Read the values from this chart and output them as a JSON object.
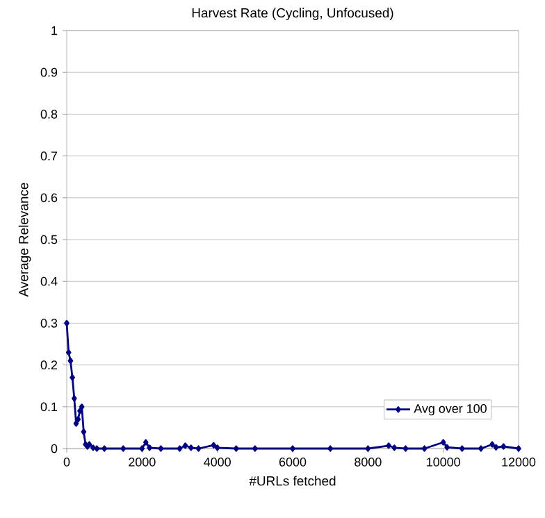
{
  "chart_data": {
    "type": "line",
    "title": "Harvest Rate (Cycling, Unfocused)",
    "xlabel": "#URLs fetched",
    "ylabel": "Average Relevance",
    "x": [
      0,
      50,
      100,
      150,
      200,
      250,
      300,
      350,
      400,
      450,
      500,
      550,
      600,
      700,
      800,
      1000,
      1500,
      2000,
      2100,
      2200,
      2500,
      3000,
      3150,
      3300,
      3500,
      3900,
      4000,
      4500,
      5000,
      6000,
      7000,
      8000,
      8550,
      8700,
      9000,
      9500,
      10000,
      10100,
      10500,
      11000,
      11300,
      11400,
      11600,
      12000
    ],
    "series": [
      {
        "name": "Avg over 100",
        "color": "#000080",
        "values": [
          0.3,
          0.23,
          0.21,
          0.17,
          0.12,
          0.06,
          0.07,
          0.09,
          0.1,
          0.04,
          0.01,
          0.005,
          0.01,
          0.002,
          0,
          0,
          0,
          0,
          0.015,
          0.002,
          0,
          0,
          0.007,
          0.002,
          0,
          0.008,
          0.002,
          0,
          0,
          0,
          0,
          0,
          0.007,
          0.002,
          0,
          0,
          0.015,
          0.003,
          0,
          0,
          0.01,
          0.003,
          0.005,
          0
        ]
      }
    ],
    "xlim": [
      0,
      12000
    ],
    "ylim": [
      0,
      1
    ],
    "xticks": [
      0,
      2000,
      4000,
      6000,
      8000,
      10000,
      12000
    ],
    "yticks": [
      0,
      0.1,
      0.2,
      0.3,
      0.4,
      0.5,
      0.6,
      0.7,
      0.8,
      0.9,
      1
    ],
    "grid": "y",
    "legend": "bottom right",
    "marker": "diamond",
    "line_style": "solid"
  }
}
